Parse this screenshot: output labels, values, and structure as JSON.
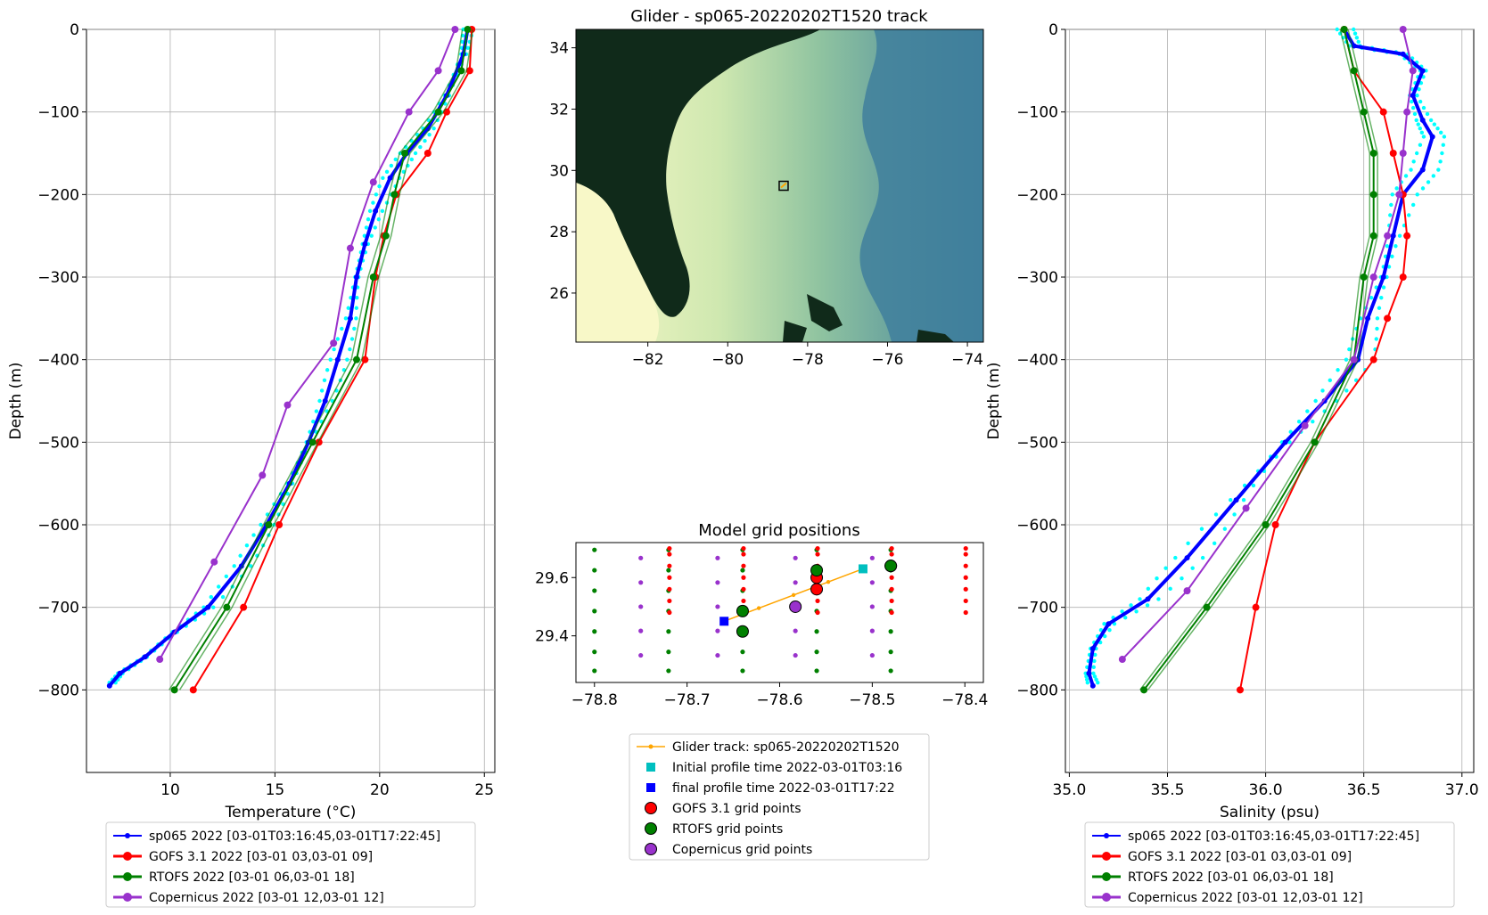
{
  "colors": {
    "glider": "#0000ff",
    "glider_raw": "#00ffff",
    "gofs": "#ff0000",
    "rtofs": "#008000",
    "copernicus": "#9932cc",
    "track": "#ffa500",
    "initial": "#00bfbf",
    "final": "#0000ff",
    "land": "#102a1a",
    "shelf": "#f8f8c8",
    "deep": "#4a8aa0"
  },
  "chart_data": [
    {
      "type": "line",
      "panel": "temperature",
      "title": "",
      "xlabel": "Temperature (°C)",
      "ylabel": "Depth (m)",
      "xlim": [
        6,
        25.5
      ],
      "ylim": [
        -900,
        0
      ],
      "xticks": [
        "10",
        "15",
        "20",
        "25"
      ],
      "yticks": [
        "0",
        "−100",
        "−200",
        "−300",
        "−400",
        "−500",
        "−600",
        "−700",
        "−800"
      ],
      "grid": true,
      "legend_position": "below",
      "series": [
        {
          "name": "sp065 2022 [03-01T03:16:45,03-01T17:22:45]",
          "color": "#0000ff",
          "points": [
            [
              24.2,
              0
            ],
            [
              24.0,
              -30
            ],
            [
              23.2,
              -80
            ],
            [
              22.3,
              -120
            ],
            [
              21.3,
              -150
            ],
            [
              20.5,
              -180
            ],
            [
              19.8,
              -220
            ],
            [
              19.3,
              -260
            ],
            [
              18.9,
              -300
            ],
            [
              18.6,
              -350
            ],
            [
              18.0,
              -400
            ],
            [
              17.4,
              -450
            ],
            [
              16.6,
              -500
            ],
            [
              15.7,
              -550
            ],
            [
              14.6,
              -600
            ],
            [
              13.4,
              -650
            ],
            [
              11.8,
              -700
            ],
            [
              10.2,
              -730
            ],
            [
              8.8,
              -760
            ],
            [
              7.6,
              -780
            ],
            [
              7.1,
              -795
            ]
          ]
        },
        {
          "name": "GOFS 3.1 2022 [03-01 03,03-01 09]",
          "color": "#ff0000",
          "points": [
            [
              24.4,
              0
            ],
            [
              24.3,
              -50
            ],
            [
              23.2,
              -100
            ],
            [
              22.3,
              -150
            ],
            [
              20.8,
              -200
            ],
            [
              20.2,
              -250
            ],
            [
              19.8,
              -300
            ],
            [
              19.3,
              -400
            ],
            [
              17.1,
              -500
            ],
            [
              15.2,
              -600
            ],
            [
              13.5,
              -700
            ],
            [
              11.1,
              -800
            ]
          ]
        },
        {
          "name": "RTOFS 2022 [03-01 06,03-01 18]",
          "color": "#008000",
          "points": [
            [
              24.2,
              0
            ],
            [
              23.9,
              -50
            ],
            [
              22.8,
              -100
            ],
            [
              21.2,
              -150
            ],
            [
              20.7,
              -200
            ],
            [
              20.3,
              -250
            ],
            [
              19.7,
              -300
            ],
            [
              18.9,
              -400
            ],
            [
              16.8,
              -500
            ],
            [
              14.7,
              -600
            ],
            [
              12.7,
              -700
            ],
            [
              10.2,
              -800
            ]
          ]
        },
        {
          "name": "Copernicus 2022 [03-01 12,03-01 12]",
          "color": "#9932cc",
          "points": [
            [
              23.6,
              0
            ],
            [
              22.8,
              -50
            ],
            [
              21.4,
              -100
            ],
            [
              19.7,
              -185
            ],
            [
              18.6,
              -265
            ],
            [
              17.8,
              -380
            ],
            [
              15.6,
              -455
            ],
            [
              14.4,
              -540
            ],
            [
              12.1,
              -645
            ],
            [
              9.5,
              -763
            ]
          ]
        }
      ],
      "raw_profiles_color": "#00ffff"
    },
    {
      "type": "map",
      "panel": "track-map",
      "title": "Glider - sp065-20220202T1520 track",
      "xlim": [
        -83.8,
        -73.6
      ],
      "ylim": [
        24.4,
        34.6
      ],
      "xticks": [
        "−82",
        "−80",
        "−78",
        "−76",
        "−74"
      ],
      "yticks": [
        "26",
        "28",
        "30",
        "32",
        "34"
      ],
      "glider_position": [
        -78.6,
        29.5
      ]
    },
    {
      "type": "scatter",
      "panel": "grid-positions",
      "title": "Model grid positions",
      "xlim": [
        -78.82,
        -78.38
      ],
      "ylim": [
        29.24,
        29.72
      ],
      "xticks": [
        "−78.8",
        "−78.7",
        "−78.6",
        "−78.5",
        "−78.4"
      ],
      "yticks": [
        "29.4",
        "29.6"
      ],
      "grid": false,
      "legend_position": "below",
      "gofs_x": [
        -78.72,
        -78.64,
        -78.56,
        -78.48,
        -78.4
      ],
      "gofs_y": [
        29.48,
        29.52,
        29.56,
        29.6,
        29.64,
        29.68,
        29.7
      ],
      "rtofs_x": [
        -78.8,
        -78.72,
        -78.64,
        -78.56,
        -78.48
      ],
      "rtofs_y": [
        29.28,
        29.345,
        29.415,
        29.485,
        29.555,
        29.625,
        29.695
      ],
      "copernicus_x": [
        -78.75,
        -78.667,
        -78.583,
        -78.5
      ],
      "copernicus_y": [
        29.333,
        29.417,
        29.5,
        29.583,
        29.667
      ],
      "track": [
        [
          -78.66,
          29.45
        ],
        [
          -78.51,
          29.63
        ]
      ],
      "initial": [
        -78.51,
        29.63
      ],
      "final": [
        -78.66,
        29.45
      ],
      "gofs_sel": [
        [
          -78.56,
          29.56
        ],
        [
          -78.56,
          29.6
        ],
        [
          -78.48,
          29.64
        ]
      ],
      "rtofs_sel": [
        [
          -78.64,
          29.415
        ],
        [
          -78.64,
          29.485
        ],
        [
          -78.56,
          29.625
        ],
        [
          -78.48,
          29.64
        ]
      ],
      "copernicus_sel": [
        [
          -78.583,
          29.5
        ]
      ]
    },
    {
      "type": "line",
      "panel": "salinity",
      "title": "",
      "xlabel": "Salinity (psu)",
      "ylabel": "Depth (m)",
      "xlim": [
        34.98,
        37.06
      ],
      "ylim": [
        -900,
        0
      ],
      "xticks": [
        "35.0",
        "35.5",
        "36.0",
        "36.5",
        "37.0"
      ],
      "yticks": [
        "0",
        "−100",
        "−200",
        "−300",
        "−400",
        "−500",
        "−600",
        "−700",
        "−800"
      ],
      "grid": true,
      "legend_position": "below",
      "series": [
        {
          "name": "sp065 2022 [03-01T03:16:45,03-01T17:22:45]",
          "color": "#0000ff",
          "points": [
            [
              36.4,
              0
            ],
            [
              36.45,
              -20
            ],
            [
              36.7,
              -30
            ],
            [
              36.8,
              -50
            ],
            [
              36.75,
              -80
            ],
            [
              36.8,
              -110
            ],
            [
              36.85,
              -130
            ],
            [
              36.8,
              -170
            ],
            [
              36.7,
              -200
            ],
            [
              36.65,
              -250
            ],
            [
              36.6,
              -300
            ],
            [
              36.52,
              -350
            ],
            [
              36.47,
              -400
            ],
            [
              36.3,
              -450
            ],
            [
              36.1,
              -500
            ],
            [
              35.85,
              -570
            ],
            [
              35.6,
              -640
            ],
            [
              35.4,
              -690
            ],
            [
              35.2,
              -720
            ],
            [
              35.12,
              -750
            ],
            [
              35.1,
              -780
            ],
            [
              35.12,
              -795
            ]
          ]
        },
        {
          "name": "GOFS 3.1 2022 [03-01 03,03-01 09]",
          "color": "#ff0000",
          "points": [
            [
              36.4,
              0
            ],
            [
              36.45,
              -50
            ],
            [
              36.6,
              -100
            ],
            [
              36.65,
              -150
            ],
            [
              36.7,
              -200
            ],
            [
              36.72,
              -250
            ],
            [
              36.7,
              -300
            ],
            [
              36.62,
              -350
            ],
            [
              36.55,
              -400
            ],
            [
              36.25,
              -500
            ],
            [
              36.05,
              -600
            ],
            [
              35.95,
              -700
            ],
            [
              35.87,
              -800
            ]
          ]
        },
        {
          "name": "RTOFS 2022 [03-01 06,03-01 18]",
          "color": "#008000",
          "points": [
            [
              36.4,
              0
            ],
            [
              36.45,
              -50
            ],
            [
              36.5,
              -100
            ],
            [
              36.55,
              -150
            ],
            [
              36.55,
              -200
            ],
            [
              36.55,
              -250
            ],
            [
              36.5,
              -300
            ],
            [
              36.45,
              -400
            ],
            [
              36.25,
              -500
            ],
            [
              36.0,
              -600
            ],
            [
              35.7,
              -700
            ],
            [
              35.38,
              -800
            ]
          ]
        },
        {
          "name": "Copernicus 2022 [03-01 12,03-01 12]",
          "color": "#9932cc",
          "points": [
            [
              36.7,
              0
            ],
            [
              36.75,
              -50
            ],
            [
              36.72,
              -100
            ],
            [
              36.7,
              -150
            ],
            [
              36.68,
              -200
            ],
            [
              36.62,
              -250
            ],
            [
              36.55,
              -300
            ],
            [
              36.45,
              -400
            ],
            [
              36.2,
              -480
            ],
            [
              35.9,
              -580
            ],
            [
              35.6,
              -680
            ],
            [
              35.27,
              -763
            ]
          ]
        }
      ],
      "raw_profiles_color": "#00ffff"
    }
  ],
  "map_legend": [
    {
      "key": "track",
      "label": "Glider track: sp065-20220202T1520"
    },
    {
      "key": "initial",
      "label": "Initial profile time 2022-03-01T03:16"
    },
    {
      "key": "final",
      "label": "final profile time 2022-03-01T17:22"
    },
    {
      "key": "gofs",
      "label": "GOFS 3.1 grid points"
    },
    {
      "key": "rtofs",
      "label": "RTOFS grid points"
    },
    {
      "key": "copernicus",
      "label": "Copernicus grid points"
    }
  ]
}
